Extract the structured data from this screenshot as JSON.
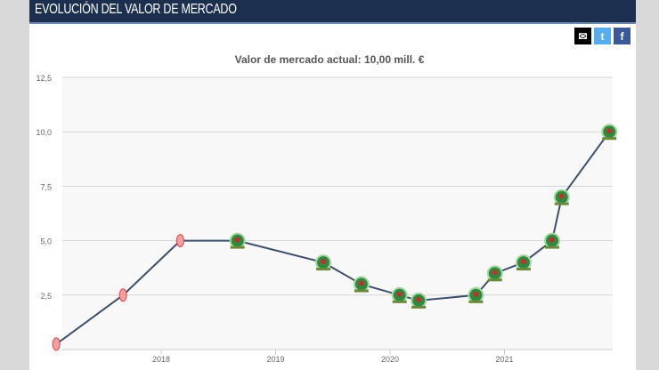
{
  "header": {
    "title": "EVOLUCIÓN DEL VALOR DE MERCADO"
  },
  "share": {
    "email_icon": "envelope-icon",
    "twitter_icon": "twitter-icon",
    "facebook_icon": "facebook-icon",
    "colors": {
      "email": "#000000",
      "twitter": "#55acee",
      "facebook": "#3b5998"
    }
  },
  "chart_data": {
    "type": "line",
    "title": "Valor de mercado actual: 10,00 mill. €",
    "xlabel": "",
    "ylabel": "",
    "ylim": [
      0,
      12.5
    ],
    "yticks": [
      "2,5",
      "5,0",
      "7,5",
      "10,0",
      "12,5"
    ],
    "xticks": [
      "2018",
      "2019",
      "2020",
      "2021"
    ],
    "xlim": [
      "2017-02",
      "2022-01"
    ],
    "grid": true,
    "line_color": "#3d4f6e",
    "points": [
      {
        "date": "2017-02",
        "value": 0.25,
        "club": "nottingham"
      },
      {
        "date": "2017-09",
        "value": 2.5,
        "club": "nottingham"
      },
      {
        "date": "2018-03",
        "value": 5.0,
        "club": "nottingham"
      },
      {
        "date": "2018-09",
        "value": 5.0,
        "club": "blackburn"
      },
      {
        "date": "2019-06",
        "value": 4.0,
        "club": "blackburn"
      },
      {
        "date": "2019-10",
        "value": 3.0,
        "club": "blackburn"
      },
      {
        "date": "2020-02",
        "value": 2.5,
        "club": "blackburn"
      },
      {
        "date": "2020-04",
        "value": 2.25,
        "club": "blackburn"
      },
      {
        "date": "2020-10",
        "value": 2.5,
        "club": "blackburn"
      },
      {
        "date": "2020-12",
        "value": 3.5,
        "club": "blackburn"
      },
      {
        "date": "2021-03",
        "value": 4.0,
        "club": "blackburn"
      },
      {
        "date": "2021-06",
        "value": 5.0,
        "club": "blackburn"
      },
      {
        "date": "2021-07",
        "value": 7.0,
        "club": "blackburn"
      },
      {
        "date": "2021-12",
        "value": 10.0,
        "club": "blackburn"
      }
    ]
  }
}
